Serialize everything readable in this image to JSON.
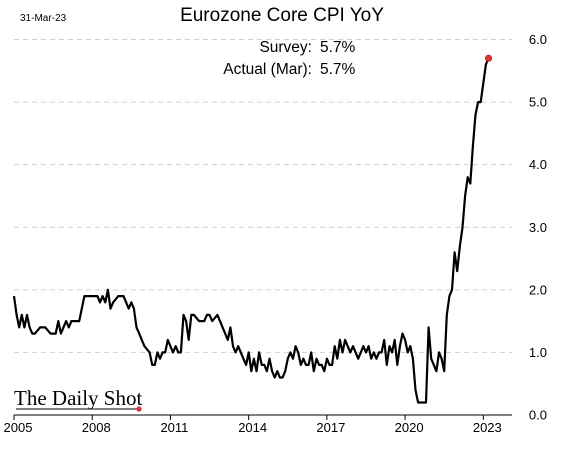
{
  "chart_data": {
    "type": "line",
    "title": "Eurozone Core CPI YoY",
    "date_stamp": "31-Mar-23",
    "annotations": [
      {
        "label": "Survey:",
        "value": "5.7%"
      },
      {
        "label": "Actual (Mar):",
        "value": "5.7%"
      }
    ],
    "watermark": "The Daily Shot",
    "xlabel": "",
    "ylabel": "",
    "xlim": [
      2005,
      2024.1
    ],
    "ylim": [
      0,
      6.2
    ],
    "x_ticks": [
      "2005",
      "2008",
      "2011",
      "2014",
      "2017",
      "2020",
      "2023"
    ],
    "y_ticks": [
      "0.0",
      "1.0",
      "2.0",
      "3.0",
      "4.0",
      "5.0",
      "6.0"
    ],
    "y_axis_side": "right",
    "grid": "horizontal dashed",
    "line_color": "#000000",
    "last_point_color": "#e03030",
    "series": [
      {
        "x": [
          2005.0,
          2005.1,
          2005.2,
          2005.3,
          2005.4,
          2005.5,
          2005.6,
          2005.7,
          2005.8,
          2006.0,
          2006.2,
          2006.4,
          2006.6,
          2006.7,
          2006.8,
          2007.0,
          2007.1,
          2007.2,
          2007.3,
          2007.5,
          2007.7,
          2008.0,
          2008.2,
          2008.3,
          2008.4,
          2008.5,
          2008.6,
          2008.7,
          2008.8,
          2009.0,
          2009.2,
          2009.4,
          2009.5,
          2009.6,
          2009.7,
          2009.8,
          2009.9,
          2010.0,
          2010.2,
          2010.3,
          2010.4,
          2010.5,
          2010.6,
          2010.7,
          2010.8,
          2010.9,
          2011.0,
          2011.1,
          2011.2,
          2011.3,
          2011.4,
          2011.5,
          2011.6,
          2011.7,
          2011.8,
          2011.9,
          2012.1,
          2012.3,
          2012.4,
          2012.5,
          2012.6,
          2012.8,
          2012.9,
          2013.0,
          2013.1,
          2013.2,
          2013.3,
          2013.4,
          2013.5,
          2013.6,
          2013.7,
          2013.8,
          2013.9,
          2014.0,
          2014.1,
          2014.2,
          2014.3,
          2014.4,
          2014.5,
          2014.6,
          2014.7,
          2014.8,
          2014.9,
          2015.0,
          2015.1,
          2015.2,
          2015.3,
          2015.4,
          2015.5,
          2015.6,
          2015.7,
          2015.8,
          2015.9,
          2016.0,
          2016.1,
          2016.2,
          2016.3,
          2016.4,
          2016.5,
          2016.6,
          2016.7,
          2016.8,
          2016.9,
          2017.0,
          2017.1,
          2017.2,
          2017.3,
          2017.4,
          2017.5,
          2017.6,
          2017.7,
          2017.8,
          2017.9,
          2018.0,
          2018.1,
          2018.2,
          2018.3,
          2018.4,
          2018.5,
          2018.6,
          2018.7,
          2018.8,
          2018.9,
          2019.0,
          2019.1,
          2019.2,
          2019.3,
          2019.4,
          2019.5,
          2019.6,
          2019.7,
          2019.8,
          2019.9,
          2020.0,
          2020.1,
          2020.2,
          2020.3,
          2020.4,
          2020.5,
          2020.6,
          2020.7,
          2020.8,
          2020.9,
          2021.0,
          2021.1,
          2021.2,
          2021.3,
          2021.4,
          2021.5,
          2021.6,
          2021.7,
          2021.8,
          2021.9,
          2022.0,
          2022.1,
          2022.2,
          2022.3,
          2022.4,
          2022.5,
          2022.6,
          2022.7,
          2022.8,
          2022.9,
          2023.0,
          2023.1,
          2023.2
        ],
        "values": [
          1.9,
          1.6,
          1.4,
          1.6,
          1.4,
          1.6,
          1.4,
          1.3,
          1.3,
          1.4,
          1.4,
          1.3,
          1.3,
          1.5,
          1.3,
          1.5,
          1.4,
          1.5,
          1.5,
          1.5,
          1.9,
          1.9,
          1.9,
          1.8,
          1.9,
          1.8,
          2.0,
          1.7,
          1.8,
          1.9,
          1.9,
          1.7,
          1.8,
          1.7,
          1.4,
          1.3,
          1.2,
          1.1,
          1.0,
          0.8,
          0.8,
          1.0,
          0.9,
          1.0,
          1.0,
          1.2,
          1.1,
          1.0,
          1.1,
          1.0,
          1.0,
          1.6,
          1.5,
          1.2,
          1.6,
          1.6,
          1.5,
          1.5,
          1.6,
          1.6,
          1.5,
          1.6,
          1.5,
          1.4,
          1.3,
          1.2,
          1.4,
          1.1,
          1.0,
          1.1,
          1.0,
          0.9,
          0.8,
          1.0,
          0.7,
          0.9,
          0.7,
          1.0,
          0.8,
          0.8,
          0.7,
          0.9,
          0.7,
          0.6,
          0.7,
          0.6,
          0.6,
          0.7,
          0.9,
          1.0,
          0.9,
          1.1,
          1.0,
          0.8,
          0.9,
          0.8,
          0.8,
          1.0,
          0.7,
          0.9,
          0.8,
          0.8,
          0.7,
          0.9,
          0.8,
          0.8,
          1.1,
          0.9,
          1.2,
          1.0,
          1.2,
          1.1,
          1.0,
          1.1,
          1.0,
          0.9,
          1.0,
          1.1,
          1.0,
          1.1,
          0.9,
          1.0,
          0.9,
          1.0,
          1.0,
          1.2,
          0.8,
          1.1,
          1.0,
          1.2,
          0.8,
          1.1,
          1.3,
          1.2,
          1.0,
          1.1,
          0.9,
          0.4,
          0.2,
          0.2,
          0.2,
          0.2,
          1.4,
          0.9,
          0.8,
          0.7,
          1.0,
          0.9,
          0.7,
          1.6,
          1.9,
          2.0,
          2.6,
          2.3,
          2.7,
          3.0,
          3.5,
          3.8,
          3.7,
          4.3,
          4.8,
          5.0,
          5.0,
          5.3,
          5.6,
          5.7
        ]
      }
    ]
  }
}
